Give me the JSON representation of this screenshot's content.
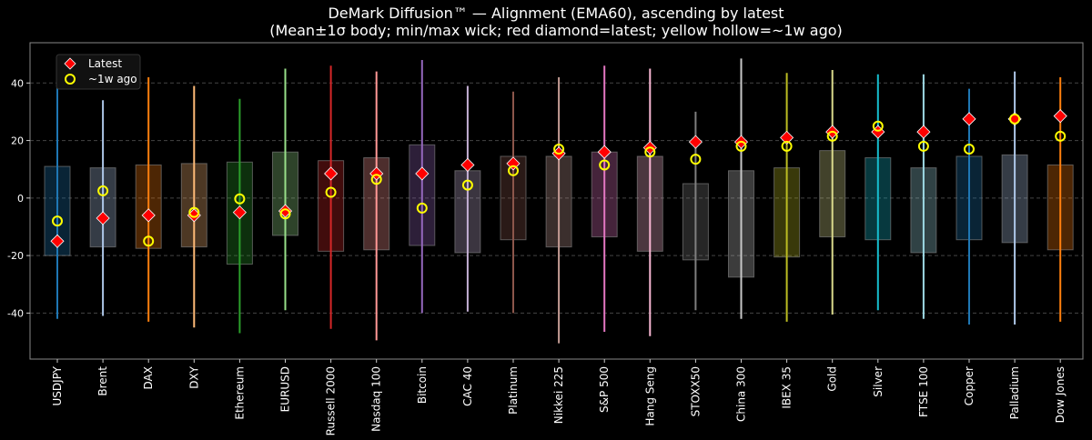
{
  "chart_data": {
    "type": "box",
    "title": "DeMark Diffusion™ — Alignment (EMA60), ascending by latest",
    "subtitle": "(Mean±1σ body; min/max wick; red diamond=latest; yellow hollow=~1w ago)",
    "xlabel": "",
    "ylabel": "",
    "ylim": [
      -56,
      54
    ],
    "yticks": [
      -40,
      -20,
      0,
      20,
      40
    ],
    "grid": "horizontal dashed",
    "legend": {
      "placement": "top-left",
      "entries": [
        "Latest",
        "~1w ago"
      ]
    },
    "marker_colors": {
      "latest": "#ff0000",
      "week_ago": "#ffff00"
    },
    "categories": [
      "USDJPY",
      "Brent",
      "DAX",
      "DXY",
      "Ethereum",
      "EURUSD",
      "Russell 2000",
      "Nasdaq 100",
      "Bitcoin",
      "CAC 40",
      "Platinum",
      "Nikkei 225",
      "S&P 500",
      "Hang Seng",
      "STOXX50",
      "China 300",
      "IBEX 35",
      "Gold",
      "Silver",
      "FTSE 100",
      "Copper",
      "Palladium",
      "Dow Jones"
    ],
    "colors": [
      "#1f77b4",
      "#aec7e8",
      "#ff7f0e",
      "#ffbb78",
      "#2ca02c",
      "#98df8a",
      "#d62728",
      "#ff9896",
      "#9467bd",
      "#c5b0d5",
      "#8c564b",
      "#c49c94",
      "#e377c2",
      "#f7b6d2",
      "#7f7f7f",
      "#c7c7c7",
      "#bcbd22",
      "#dbdb8d",
      "#17becf",
      "#9edae5",
      "#1f77b4",
      "#aec7e8",
      "#ff7f0e"
    ],
    "body_high": [
      11,
      10.5,
      11.5,
      12,
      12.5,
      16,
      13,
      14,
      18.5,
      9.5,
      14.5,
      14.5,
      16,
      14.5,
      5,
      9.5,
      10.5,
      16.5,
      14,
      10.5,
      14.5,
      15,
      11.5
    ],
    "body_low": [
      -20,
      -17,
      -17.5,
      -17,
      -23,
      -13,
      -18.5,
      -18,
      -16.5,
      -19,
      -14.5,
      -17,
      -13.5,
      -18.5,
      -21.5,
      -27.5,
      -20.5,
      -13.5,
      -14.5,
      -19,
      -14.5,
      -15.5,
      -18
    ],
    "max": [
      44,
      34,
      42,
      39,
      34.5,
      45,
      46,
      44,
      48,
      39,
      37,
      42,
      46,
      45,
      30,
      48.5,
      43.5,
      44.5,
      43,
      43,
      38,
      44,
      42
    ],
    "min": [
      -42,
      -41,
      -43,
      -45,
      -47,
      -39,
      -45.5,
      -49.5,
      -40,
      -39.5,
      -40,
      -50.5,
      -46.5,
      -48,
      -39,
      -42,
      -43,
      -40.5,
      -39,
      -42,
      -44,
      -44,
      -43
    ],
    "latest": [
      -15,
      -7,
      -6,
      -6,
      -5,
      -4.5,
      8.5,
      8.5,
      8.5,
      11.5,
      12,
      15.5,
      16,
      17.5,
      19.5,
      19.5,
      21,
      23,
      23,
      23,
      27.5,
      27.5,
      28.5
    ],
    "week_ago": [
      -8,
      2.5,
      -15,
      -5,
      -0.3,
      -5.5,
      2,
      6.5,
      -3.5,
      4.5,
      9.5,
      17,
      11.5,
      16,
      13.5,
      18,
      18,
      21.5,
      25,
      18,
      17,
      27.5,
      21.5
    ]
  }
}
